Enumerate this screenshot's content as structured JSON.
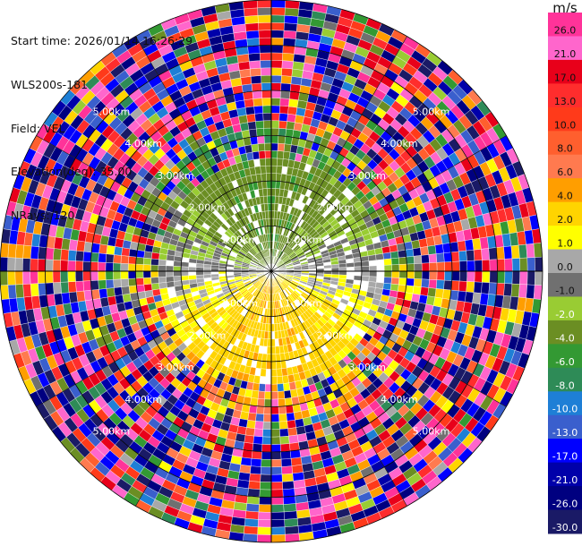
{
  "header": {
    "start_time_label": "Start time: 2026/01/14 16:26:29",
    "instrument": "WLS200s-181",
    "field_label": "Field: VEL",
    "elevation_label": "Elevation(deg): 35.00",
    "nrays_label": "NRays: 120"
  },
  "chart_data": {
    "type": "heatmap",
    "projection": "polar-ppi",
    "field": "VEL",
    "elevation_deg": 35.0,
    "n_rays": 120,
    "n_gates": 36,
    "max_range_km": 6.0,
    "range_ring_labels": [
      "1.00km",
      "2.00km",
      "3.00km",
      "4.00km",
      "5.00km"
    ],
    "colorbar": {
      "unit": "m/s",
      "tick_labels": [
        "26.0",
        "21.0",
        "17.0",
        "13.0",
        "10.0",
        "8.0",
        "6.0",
        "4.0",
        "2.0",
        "1.0",
        "0.0",
        "-1.0",
        "-2.0",
        "-4.0",
        "-6.0",
        "-8.0",
        "-10.0",
        "-13.0",
        "-17.0",
        "-21.0",
        "-26.0",
        "-30.0"
      ],
      "bins": [
        {
          "max": 30,
          "color": "#ff3399"
        },
        {
          "max": 26,
          "color": "#ff66cc"
        },
        {
          "max": 21,
          "color": "#e8001a"
        },
        {
          "max": 17,
          "color": "#ff2d2d"
        },
        {
          "max": 13,
          "color": "#ff3a1a"
        },
        {
          "max": 10,
          "color": "#ff5f2e"
        },
        {
          "max": 8,
          "color": "#ff7a4f"
        },
        {
          "max": 6,
          "color": "#ff9e00"
        },
        {
          "max": 4,
          "color": "#ffd400"
        },
        {
          "max": 2,
          "color": "#ffff00"
        },
        {
          "max": 1,
          "color": "#a8a8a8"
        },
        {
          "max": 0,
          "color": "#707070"
        },
        {
          "max": -1,
          "color": "#99cc33"
        },
        {
          "max": -2,
          "color": "#6b8e23"
        },
        {
          "max": -4,
          "color": "#339933"
        },
        {
          "max": -6,
          "color": "#2e8b57"
        },
        {
          "max": -8,
          "color": "#1e7fd6"
        },
        {
          "max": -10,
          "color": "#3a5fcd"
        },
        {
          "max": -13,
          "color": "#0000ff"
        },
        {
          "max": -17,
          "color": "#0000aa"
        },
        {
          "max": -21,
          "color": "#000080"
        },
        {
          "max": -26,
          "color": "#1a1a66"
        }
      ]
    },
    "note_values": "velocity field: near gates weak negative (north, greens) and weak positive (south, yellows); far gates noisy across full -30..30 m/s range"
  }
}
